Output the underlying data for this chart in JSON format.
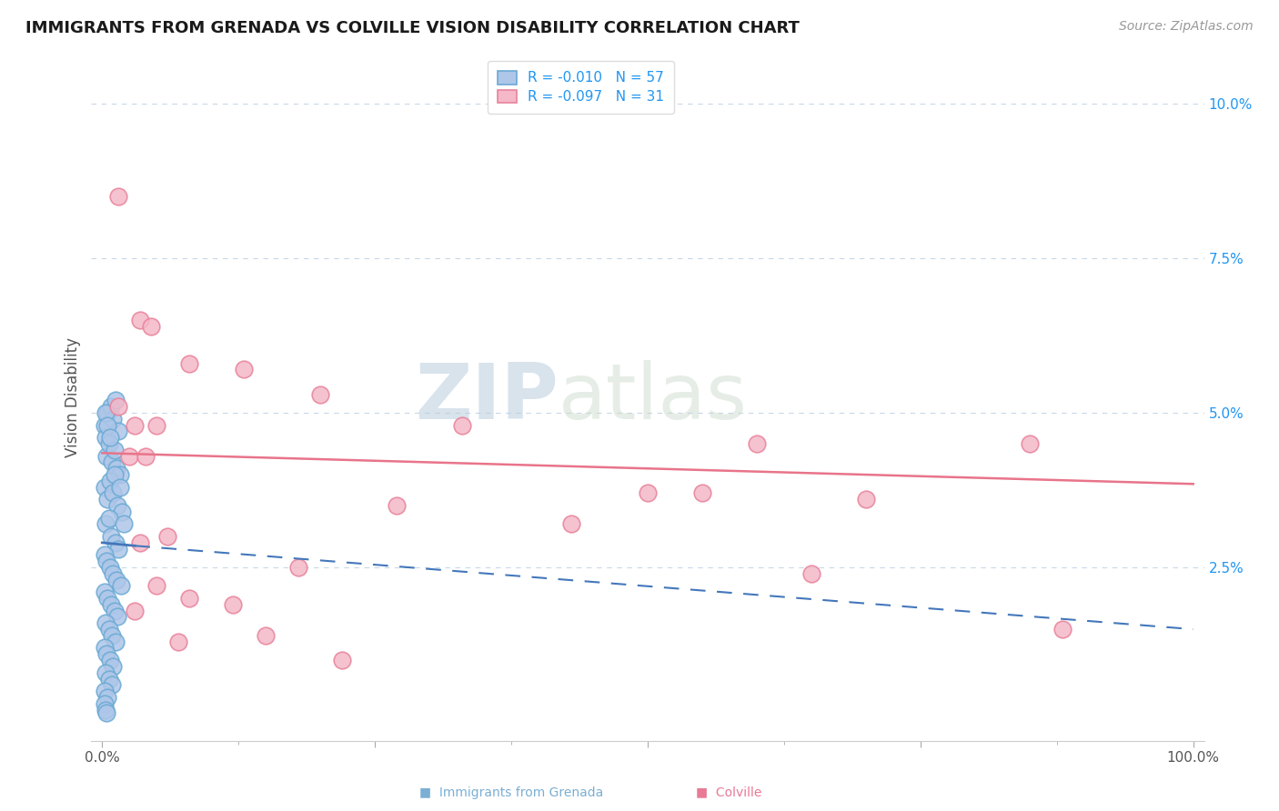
{
  "title": "IMMIGRANTS FROM GRENADA VS COLVILLE VISION DISABILITY CORRELATION CHART",
  "source": "Source: ZipAtlas.com",
  "ylabel": "Vision Disability",
  "xlim": [
    0,
    100
  ],
  "ylim": [
    0,
    10.5
  ],
  "yticks": [
    0,
    2.5,
    5.0,
    7.5,
    10.0
  ],
  "ytick_labels": [
    "",
    "2.5%",
    "5.0%",
    "7.5%",
    "10.0%"
  ],
  "watermark": "ZIPatlas",
  "blue_face": "#aec6e8",
  "blue_edge": "#6aaad4",
  "pink_face": "#f4b8c8",
  "pink_edge": "#e8829a",
  "blue_line_color": "#4477bb",
  "pink_line_color": "#e8748a",
  "grid_color": "#c8d8e8",
  "blue_scatter": [
    [
      0.2,
      4.8
    ],
    [
      0.3,
      4.6
    ],
    [
      0.5,
      5.0
    ],
    [
      0.8,
      5.1
    ],
    [
      1.0,
      4.9
    ],
    [
      1.2,
      5.2
    ],
    [
      1.5,
      4.7
    ],
    [
      0.4,
      4.3
    ],
    [
      0.6,
      4.5
    ],
    [
      0.9,
      4.2
    ],
    [
      1.1,
      4.4
    ],
    [
      1.3,
      4.1
    ],
    [
      1.6,
      4.0
    ],
    [
      0.2,
      3.8
    ],
    [
      0.5,
      3.6
    ],
    [
      0.7,
      3.9
    ],
    [
      1.0,
      3.7
    ],
    [
      1.4,
      3.5
    ],
    [
      1.8,
      3.4
    ],
    [
      0.3,
      3.2
    ],
    [
      0.6,
      3.3
    ],
    [
      0.8,
      3.0
    ],
    [
      1.2,
      2.9
    ],
    [
      1.5,
      2.8
    ],
    [
      0.2,
      2.7
    ],
    [
      0.4,
      2.6
    ],
    [
      0.7,
      2.5
    ],
    [
      1.0,
      2.4
    ],
    [
      1.3,
      2.3
    ],
    [
      1.7,
      2.2
    ],
    [
      0.2,
      2.1
    ],
    [
      0.5,
      2.0
    ],
    [
      0.8,
      1.9
    ],
    [
      1.1,
      1.8
    ],
    [
      1.4,
      1.7
    ],
    [
      0.3,
      1.6
    ],
    [
      0.6,
      1.5
    ],
    [
      0.9,
      1.4
    ],
    [
      1.2,
      1.3
    ],
    [
      0.2,
      1.2
    ],
    [
      0.4,
      1.1
    ],
    [
      0.7,
      1.0
    ],
    [
      1.0,
      0.9
    ],
    [
      0.3,
      0.8
    ],
    [
      0.6,
      0.7
    ],
    [
      0.9,
      0.6
    ],
    [
      0.2,
      0.5
    ],
    [
      0.5,
      0.4
    ],
    [
      0.2,
      0.3
    ],
    [
      0.3,
      0.2
    ],
    [
      0.4,
      0.15
    ],
    [
      0.3,
      5.0
    ],
    [
      0.5,
      4.8
    ],
    [
      0.7,
      4.6
    ],
    [
      1.1,
      4.0
    ],
    [
      1.6,
      3.8
    ],
    [
      2.0,
      3.2
    ]
  ],
  "pink_scatter": [
    [
      1.5,
      8.5
    ],
    [
      3.5,
      6.5
    ],
    [
      4.5,
      6.4
    ],
    [
      8.0,
      5.8
    ],
    [
      1.5,
      5.1
    ],
    [
      13.0,
      5.7
    ],
    [
      20.0,
      5.3
    ],
    [
      3.0,
      4.8
    ],
    [
      5.0,
      4.8
    ],
    [
      33.0,
      4.8
    ],
    [
      60.0,
      4.5
    ],
    [
      85.0,
      4.5
    ],
    [
      2.5,
      4.3
    ],
    [
      4.0,
      4.3
    ],
    [
      50.0,
      3.7
    ],
    [
      55.0,
      3.7
    ],
    [
      70.0,
      3.6
    ],
    [
      27.0,
      3.5
    ],
    [
      43.0,
      3.2
    ],
    [
      3.5,
      2.9
    ],
    [
      6.0,
      3.0
    ],
    [
      18.0,
      2.5
    ],
    [
      65.0,
      2.4
    ],
    [
      5.0,
      2.2
    ],
    [
      8.0,
      2.0
    ],
    [
      12.0,
      1.9
    ],
    [
      3.0,
      1.8
    ],
    [
      88.0,
      1.5
    ],
    [
      15.0,
      1.4
    ],
    [
      7.0,
      1.3
    ],
    [
      22.0,
      1.0
    ]
  ],
  "pink_trend": [
    0.0,
    4.35,
    100.0,
    3.85
  ],
  "blue_trend_solid": [
    0.0,
    2.9,
    3.0,
    2.85
  ],
  "blue_trend_dashed": [
    3.0,
    2.85,
    100.0,
    1.5
  ]
}
